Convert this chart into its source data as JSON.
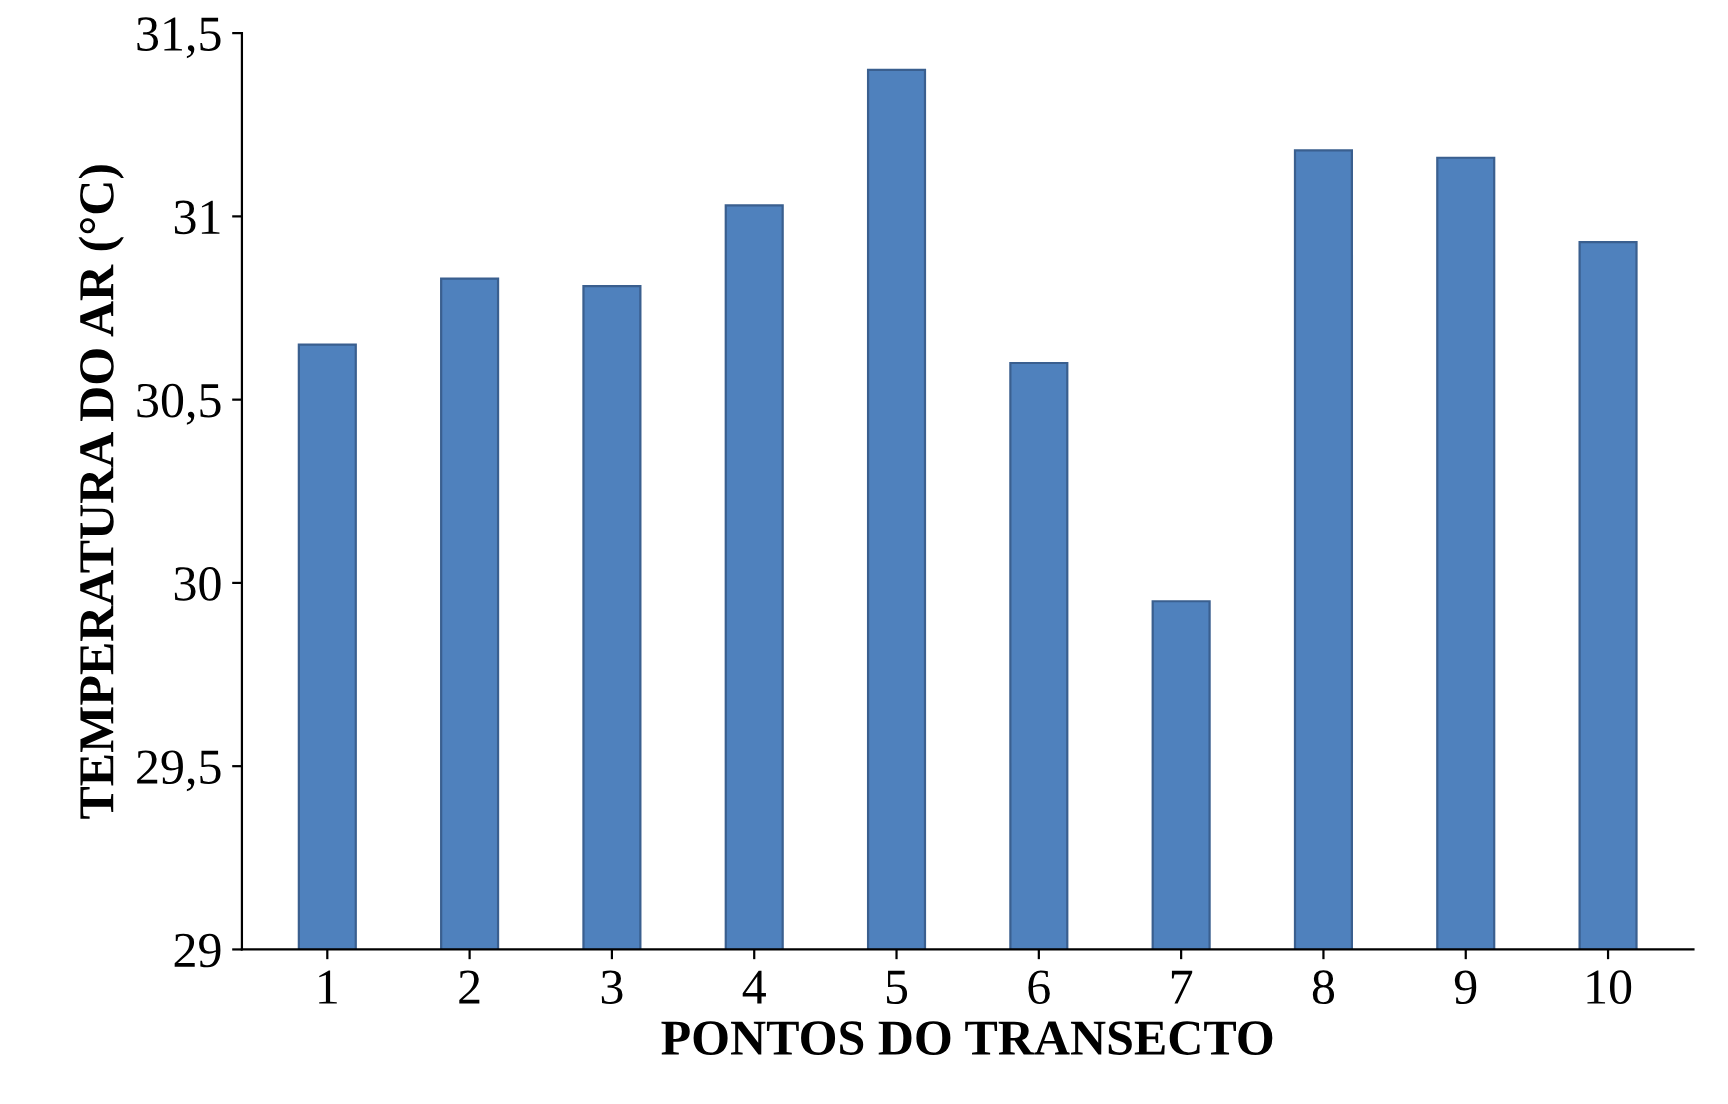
{
  "chart_data": {
    "type": "bar",
    "xlabel": "PONTOS DO TRANSECTO",
    "ylabel": "TEMPERATURA DO AR (°C)",
    "categories": [
      "1",
      "2",
      "3",
      "4",
      "5",
      "6",
      "7",
      "8",
      "9",
      "10"
    ],
    "values": [
      30.65,
      30.83,
      30.81,
      31.03,
      31.4,
      30.6,
      29.95,
      31.18,
      31.16,
      30.93
    ],
    "color": "#4f81bd",
    "ylim": [
      29,
      31.5
    ],
    "yticks": [
      {
        "value": 29,
        "label": "29"
      },
      {
        "value": 29.5,
        "label": "29,5"
      },
      {
        "value": 30,
        "label": "30"
      },
      {
        "value": 30.5,
        "label": "30,5"
      },
      {
        "value": 31,
        "label": "31"
      },
      {
        "value": 31.5,
        "label": "31,5"
      }
    ],
    "grid": false
  }
}
